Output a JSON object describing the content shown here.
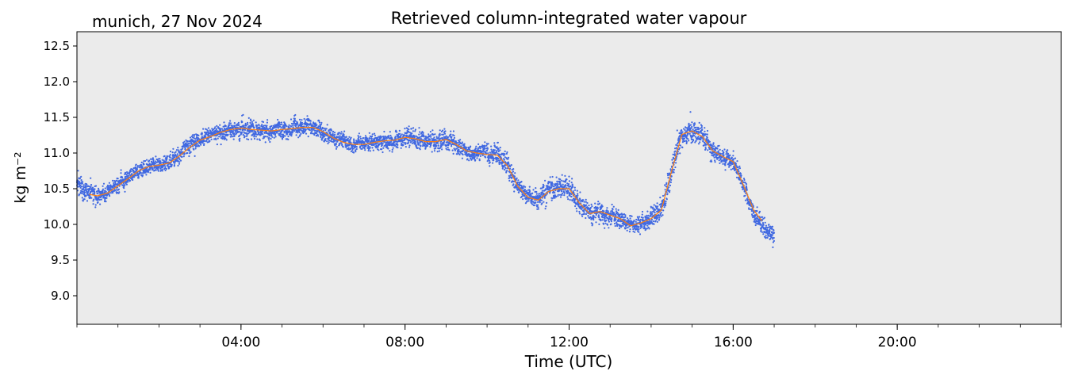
{
  "chart_data": {
    "type": "scatter",
    "title": "Retrieved column-integrated water vapour",
    "subtitle": "munich, 27 Nov 2024",
    "xlabel": "Time (UTC)",
    "ylabel": "kg m⁻²",
    "ylim": [
      8.6,
      12.7
    ],
    "xlim_hours": [
      0,
      24
    ],
    "yticks": [
      9.0,
      9.5,
      10.0,
      10.5,
      11.0,
      11.5,
      12.0,
      12.5
    ],
    "ytick_labels": [
      "9.0",
      "9.5",
      "10.0",
      "10.5",
      "11.0",
      "11.5",
      "12.0",
      "12.5"
    ],
    "xticks_hours": [
      4,
      8,
      12,
      16,
      20
    ],
    "xtick_labels": [
      "04:00",
      "08:00",
      "12:00",
      "16:00",
      "20:00"
    ],
    "grid": false,
    "background": "#ebebeb",
    "colors": {
      "scatter": "#4169e1",
      "smooth": "#ff7f0e"
    },
    "series": [
      {
        "kind": "scatter-band",
        "x_hours": [
          0.0,
          0.25,
          0.5,
          0.75,
          1.0,
          1.25,
          1.5,
          1.75,
          2.0,
          2.25,
          2.5,
          2.75,
          3.0,
          3.25,
          3.5,
          3.75,
          4.0,
          4.25,
          4.5,
          4.75,
          5.0,
          5.25,
          5.5,
          5.75,
          6.0,
          6.25,
          6.5,
          6.75,
          7.0,
          7.25,
          7.5,
          7.75,
          8.0,
          8.25,
          8.5,
          8.75,
          9.0,
          9.25,
          9.5,
          9.75,
          10.0,
          10.25,
          10.5,
          10.75,
          11.0,
          11.25,
          11.5,
          11.75,
          12.0,
          12.25,
          12.5,
          12.75,
          13.0,
          13.25,
          13.5,
          13.75,
          14.0,
          14.25,
          14.5,
          14.75,
          15.0,
          15.25,
          15.5,
          15.75,
          16.0,
          16.25,
          16.5,
          16.75,
          17.0
        ],
        "center": [
          10.62,
          10.48,
          10.42,
          10.46,
          10.56,
          10.66,
          10.76,
          10.82,
          10.84,
          10.88,
          10.98,
          11.1,
          11.2,
          11.24,
          11.3,
          11.34,
          11.34,
          11.32,
          11.32,
          11.3,
          11.33,
          11.34,
          11.37,
          11.37,
          11.3,
          11.21,
          11.15,
          11.12,
          11.12,
          11.16,
          11.17,
          11.18,
          11.22,
          11.2,
          11.16,
          11.16,
          11.2,
          11.12,
          11.02,
          10.99,
          10.98,
          10.98,
          10.82,
          10.52,
          10.38,
          10.35,
          10.47,
          10.5,
          10.5,
          10.28,
          10.14,
          10.18,
          10.12,
          10.08,
          9.98,
          10.02,
          10.08,
          10.2,
          10.78,
          11.28,
          11.32,
          11.24,
          11.02,
          10.95,
          10.88,
          10.55,
          10.15,
          9.95,
          9.82
        ],
        "spread": [
          0.2,
          0.18,
          0.16,
          0.15,
          0.15,
          0.15,
          0.15,
          0.15,
          0.15,
          0.16,
          0.16,
          0.16,
          0.16,
          0.17,
          0.17,
          0.18,
          0.18,
          0.18,
          0.17,
          0.17,
          0.17,
          0.17,
          0.17,
          0.17,
          0.17,
          0.16,
          0.16,
          0.15,
          0.15,
          0.15,
          0.16,
          0.16,
          0.18,
          0.2,
          0.2,
          0.18,
          0.18,
          0.18,
          0.16,
          0.16,
          0.17,
          0.2,
          0.22,
          0.18,
          0.16,
          0.18,
          0.2,
          0.22,
          0.22,
          0.2,
          0.18,
          0.2,
          0.18,
          0.18,
          0.16,
          0.16,
          0.18,
          0.2,
          0.22,
          0.22,
          0.24,
          0.2,
          0.18,
          0.18,
          0.18,
          0.18,
          0.18,
          0.17,
          0.16
        ]
      },
      {
        "kind": "smoothed-line",
        "x_hours": [
          0.3,
          0.5,
          0.75,
          1.0,
          1.25,
          1.5,
          1.75,
          2.0,
          2.25,
          2.5,
          2.75,
          3.0,
          3.25,
          3.5,
          3.75,
          4.0,
          4.25,
          4.5,
          4.75,
          5.0,
          5.25,
          5.5,
          5.75,
          6.0,
          6.25,
          6.5,
          6.75,
          7.0,
          7.25,
          7.5,
          7.75,
          8.0,
          8.25,
          8.5,
          8.75,
          9.0,
          9.25,
          9.5,
          9.75,
          10.0,
          10.25,
          10.5,
          10.75,
          11.0,
          11.25,
          11.5,
          11.75,
          12.0,
          12.25,
          12.5,
          12.75,
          13.0,
          13.25,
          13.5,
          13.75,
          14.0,
          14.25,
          14.5,
          14.75,
          15.0,
          15.25,
          15.5,
          15.75,
          16.0,
          16.25,
          16.5,
          16.7
        ],
        "y": [
          10.42,
          10.4,
          10.44,
          10.54,
          10.64,
          10.75,
          10.81,
          10.83,
          10.86,
          10.96,
          11.08,
          11.18,
          11.23,
          11.29,
          11.33,
          11.35,
          11.33,
          11.32,
          11.31,
          11.33,
          11.34,
          11.36,
          11.36,
          11.3,
          11.21,
          11.15,
          11.12,
          11.12,
          11.15,
          11.17,
          11.18,
          11.22,
          11.2,
          11.16,
          11.16,
          11.19,
          11.12,
          11.03,
          11.0,
          10.98,
          10.97,
          10.82,
          10.53,
          10.38,
          10.34,
          10.46,
          10.5,
          10.5,
          10.3,
          10.15,
          10.18,
          10.13,
          10.08,
          9.98,
          10.02,
          10.08,
          10.2,
          10.75,
          11.26,
          11.31,
          11.23,
          11.03,
          10.95,
          10.88,
          10.55,
          10.2,
          10.05
        ]
      }
    ]
  }
}
